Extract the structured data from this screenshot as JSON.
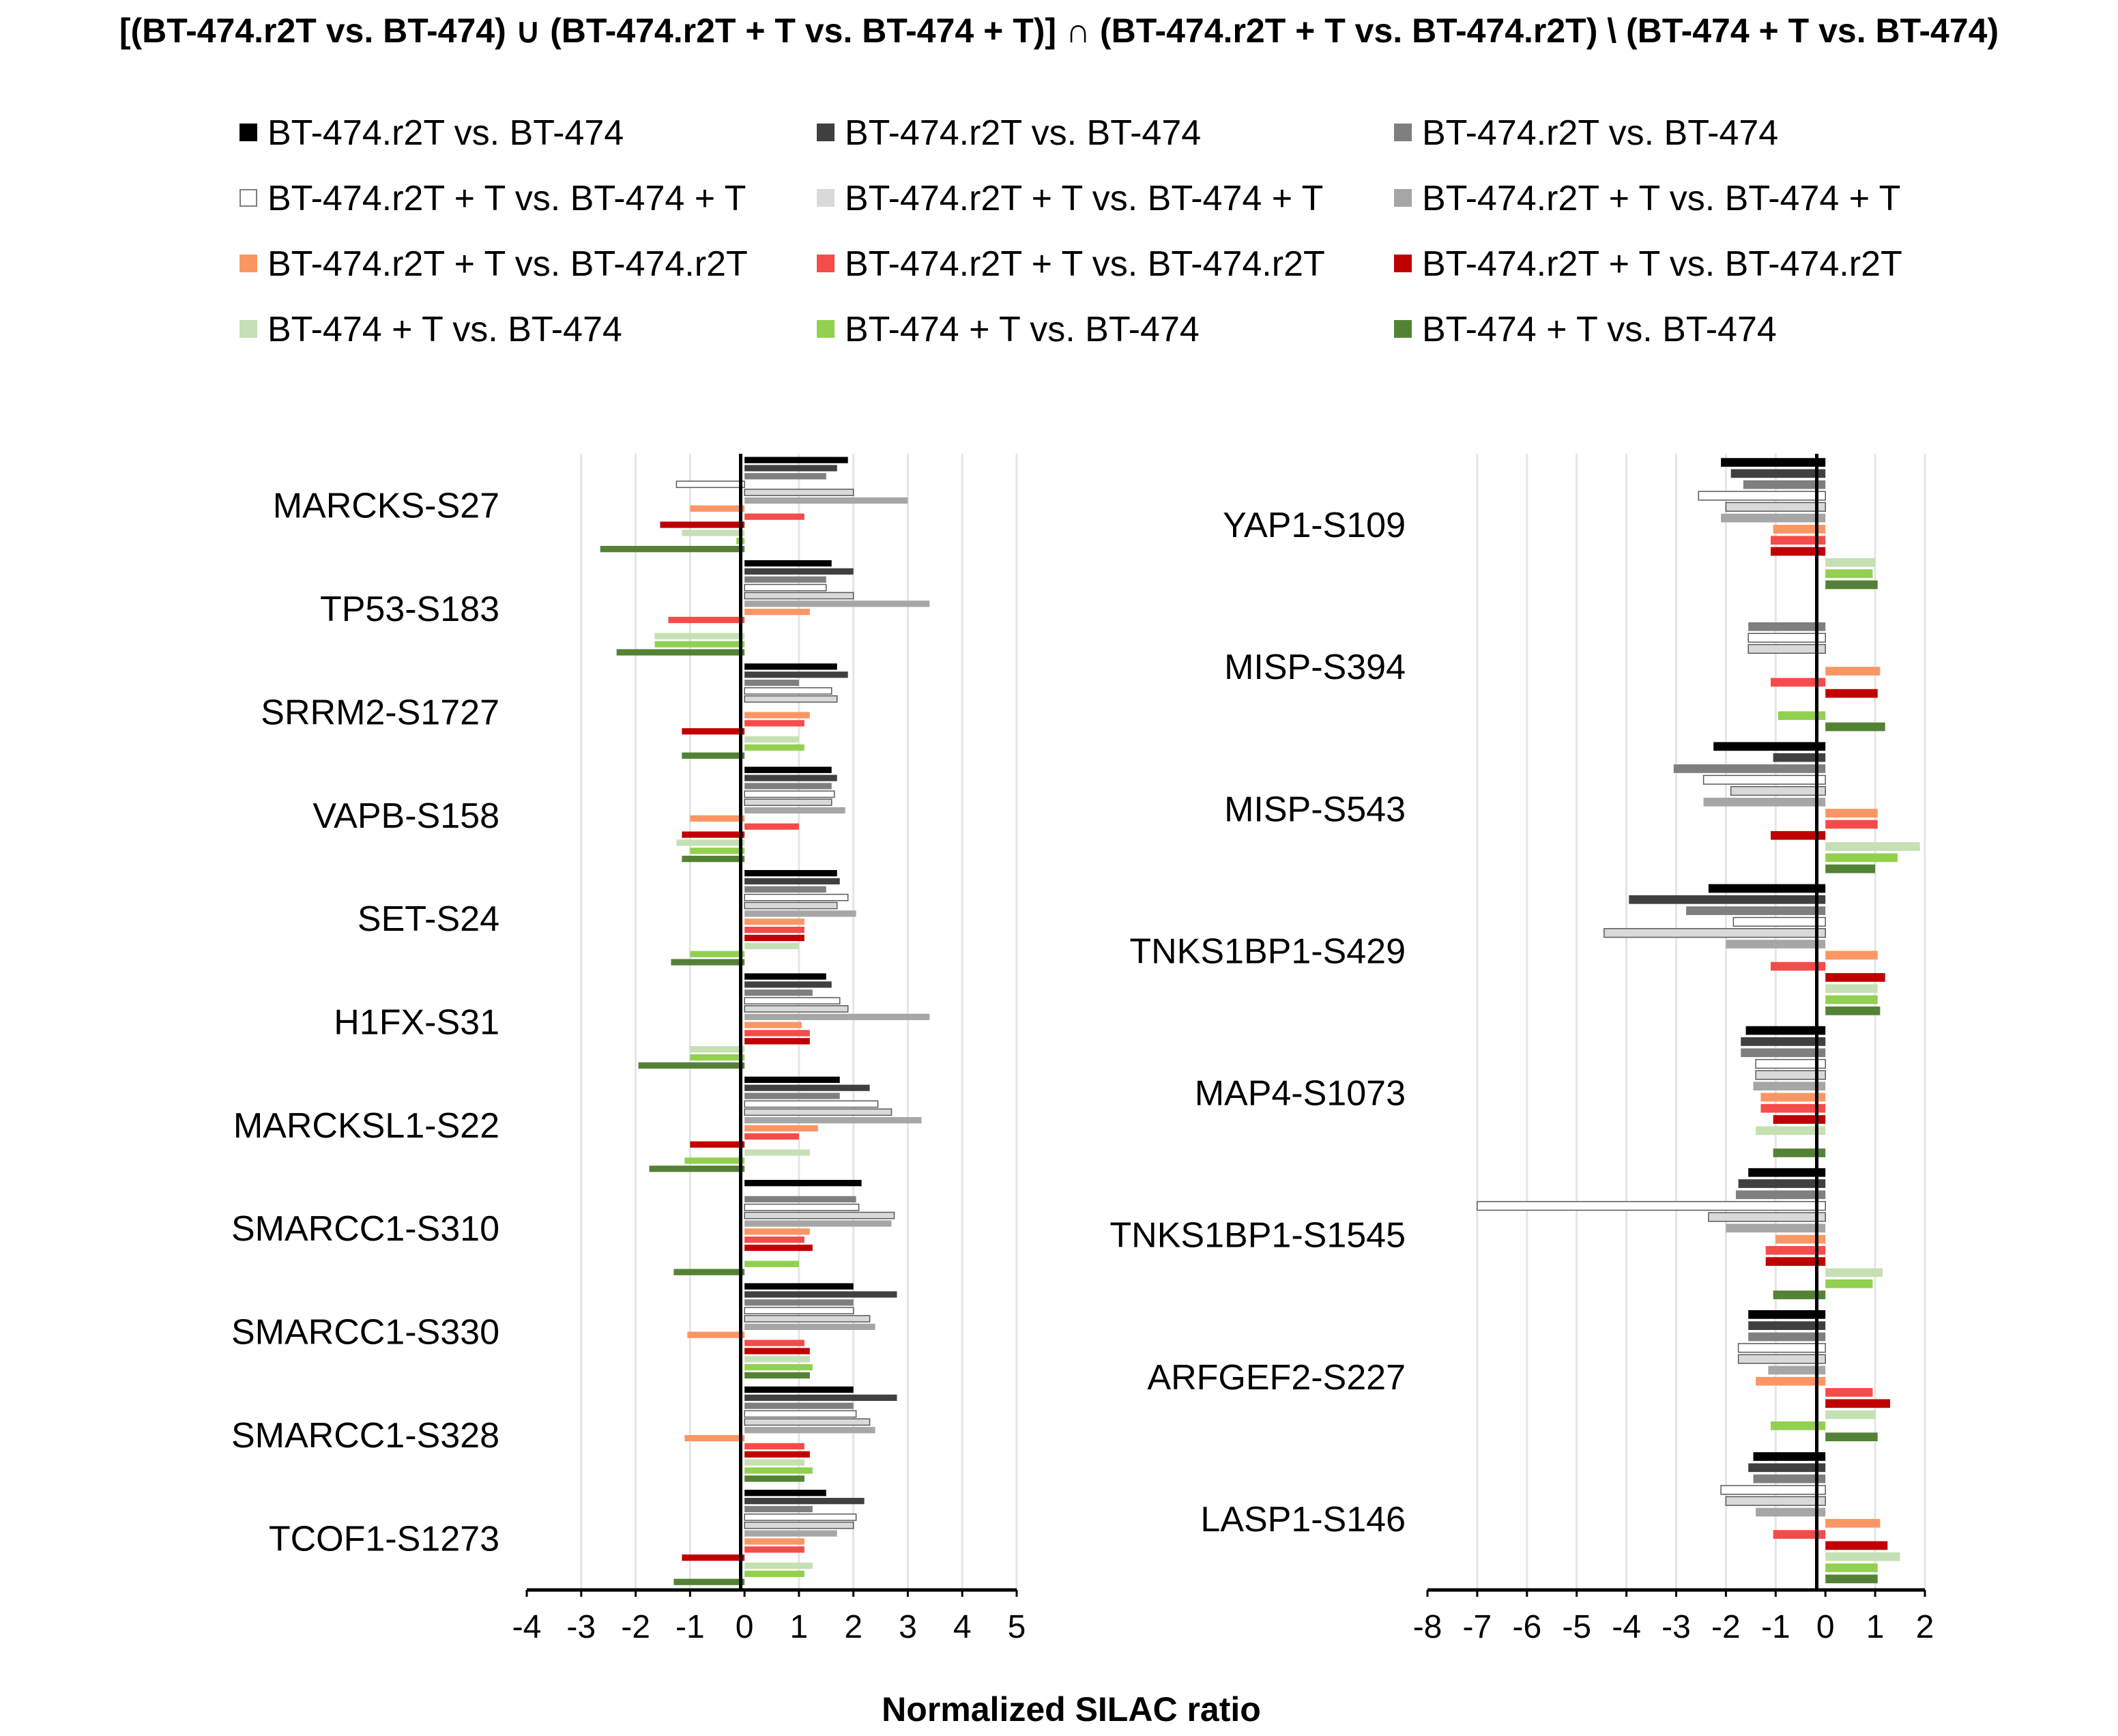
{
  "title": "[(BT-474.r2T vs. BT-474) ∪ (BT-474.r2T + T vs. BT-474 + T)] ∩ (BT-474.r2T + T vs. BT-474.r2T) \\ (BT-474 + T vs. BT-474)",
  "colors": {
    "c1": [
      "#000000",
      "#404040",
      "#7f7f7f"
    ],
    "c2": [
      "#ffffff",
      "#d9d9d9",
      "#a6a6a6"
    ],
    "c3": [
      "#fa9664",
      "#f54b4b",
      "#c00000"
    ],
    "c4": [
      "#c5e0b4",
      "#92d050",
      "#548235"
    ]
  },
  "chart_data": {
    "type": "bar",
    "orientation": "horizontal",
    "xlabel": "Normalized SILAC ratio",
    "legend": {
      "placement": "top",
      "entries": [
        [
          "BT-474.r2T vs. BT-474",
          "BT-474.r2T vs. BT-474",
          "BT-474.r2T vs. BT-474"
        ],
        [
          "BT-474.r2T + T vs. BT-474 + T",
          "BT-474.r2T + T vs. BT-474 + T",
          "BT-474.r2T + T vs. BT-474 + T"
        ],
        [
          "BT-474.r2T + T vs. BT-474.r2T",
          "BT-474.r2T + T vs. BT-474.r2T",
          "BT-474.r2T + T vs. BT-474.r2T"
        ],
        [
          "BT-474 + T vs. BT-474",
          "BT-474 + T vs. BT-474",
          "BT-474 + T vs. BT-474"
        ]
      ]
    },
    "panels": [
      {
        "xlim": [
          -4,
          5
        ],
        "ticks": [
          "-4",
          "-3",
          "-2",
          "-1",
          "0",
          "1",
          "2",
          "3",
          "4",
          "5"
        ],
        "categories": [
          {
            "label": "MARCKS-S27",
            "values": [
              1.9,
              1.7,
              1.5,
              -1.25,
              2.0,
              3.0,
              -1.0,
              1.1,
              -1.55,
              -1.15,
              -0.15,
              -2.65
            ]
          },
          {
            "label": "TP53-S183",
            "values": [
              1.6,
              2.0,
              1.5,
              1.5,
              2.0,
              3.4,
              1.2,
              -1.4,
              0.0,
              -1.65,
              -1.65,
              -2.35
            ]
          },
          {
            "label": "SRRM2-S1727",
            "values": [
              1.7,
              1.9,
              1.0,
              1.6,
              1.7,
              0.0,
              1.2,
              1.1,
              -1.15,
              1.0,
              1.1,
              -1.15
            ]
          },
          {
            "label": "VAPB-S158",
            "values": [
              1.6,
              1.7,
              1.6,
              1.65,
              1.6,
              1.85,
              -1.0,
              1.0,
              -1.15,
              -1.25,
              -1.0,
              -1.15
            ]
          },
          {
            "label": "SET-S24",
            "values": [
              1.7,
              1.75,
              1.5,
              1.9,
              1.7,
              2.05,
              1.1,
              1.1,
              1.1,
              1.0,
              -1.0,
              -1.35
            ]
          },
          {
            "label": "H1FX-S31",
            "values": [
              1.5,
              1.6,
              1.25,
              1.75,
              1.9,
              3.4,
              1.05,
              1.2,
              1.2,
              -1.0,
              -1.0,
              -1.95
            ]
          },
          {
            "label": "MARCKSL1-S22",
            "values": [
              1.75,
              2.3,
              1.75,
              2.45,
              2.7,
              3.25,
              1.35,
              1.0,
              -1.0,
              1.2,
              -1.1,
              -1.75
            ]
          },
          {
            "label": "SMARCC1-S310",
            "values": [
              2.15,
              0.0,
              2.05,
              2.1,
              2.75,
              2.7,
              1.2,
              1.1,
              1.25,
              0.0,
              1.0,
              -1.3
            ]
          },
          {
            "label": "SMARCC1-S330",
            "values": [
              2.0,
              2.8,
              2.0,
              2.0,
              2.3,
              2.4,
              -1.05,
              1.1,
              1.2,
              1.2,
              1.25,
              1.2
            ]
          },
          {
            "label": "SMARCC1-S328",
            "values": [
              2.0,
              2.8,
              2.0,
              2.05,
              2.3,
              2.4,
              -1.1,
              1.1,
              1.2,
              1.1,
              1.25,
              1.1
            ]
          },
          {
            "label": "TCOF1-S1273",
            "values": [
              1.5,
              2.2,
              1.25,
              2.05,
              2.0,
              1.7,
              1.1,
              1.1,
              -1.15,
              1.25,
              1.1,
              -1.3
            ]
          }
        ]
      },
      {
        "xlim": [
          -8,
          2
        ],
        "ticks": [
          "-8",
          "-7",
          "-6",
          "-5",
          "-4",
          "-3",
          "-2",
          "-1",
          "0",
          "1",
          "2"
        ],
        "categories": [
          {
            "label": "YAP1-S109",
            "values": [
              -2.1,
              -1.9,
              -1.65,
              -2.55,
              -2.0,
              -2.1,
              -1.05,
              -1.1,
              -1.1,
              1.0,
              0.95,
              1.05
            ]
          },
          {
            "label": "MISP-S394",
            "values": [
              0.0,
              0.0,
              -1.55,
              -1.55,
              -1.55,
              0.0,
              1.1,
              -1.1,
              1.05,
              0.0,
              -0.95,
              1.2
            ]
          },
          {
            "label": "MISP-S543",
            "values": [
              -2.25,
              -1.05,
              -3.05,
              -2.45,
              -1.9,
              -2.45,
              1.05,
              1.05,
              -1.1,
              1.9,
              1.45,
              1.0
            ]
          },
          {
            "label": "TNKS1BP1-S429",
            "values": [
              -2.35,
              -3.95,
              -2.8,
              -1.85,
              -4.45,
              -2.0,
              1.05,
              -1.1,
              1.2,
              1.05,
              1.05,
              1.1
            ]
          },
          {
            "label": "MAP4-S1073",
            "values": [
              -1.6,
              -1.7,
              -1.7,
              -1.4,
              -1.4,
              -1.45,
              -1.3,
              -1.3,
              -1.05,
              -1.4,
              0.0,
              -1.05
            ]
          },
          {
            "label": "TNKS1BP1-S1545",
            "values": [
              -1.55,
              -1.75,
              -1.8,
              -7.0,
              -2.35,
              -2.0,
              -1.0,
              -1.2,
              -1.2,
              1.15,
              0.95,
              -1.05
            ]
          },
          {
            "label": "ARFGEF2-S227",
            "values": [
              -1.55,
              -1.55,
              -1.55,
              -1.75,
              -1.75,
              -1.15,
              -1.4,
              0.95,
              1.3,
              1.0,
              -1.1,
              1.05
            ]
          },
          {
            "label": "LASP1-S146",
            "values": [
              -1.45,
              -1.55,
              -1.45,
              -2.1,
              -2.0,
              -1.4,
              1.1,
              -1.05,
              1.25,
              1.5,
              1.05,
              1.05
            ]
          }
        ]
      }
    ]
  }
}
